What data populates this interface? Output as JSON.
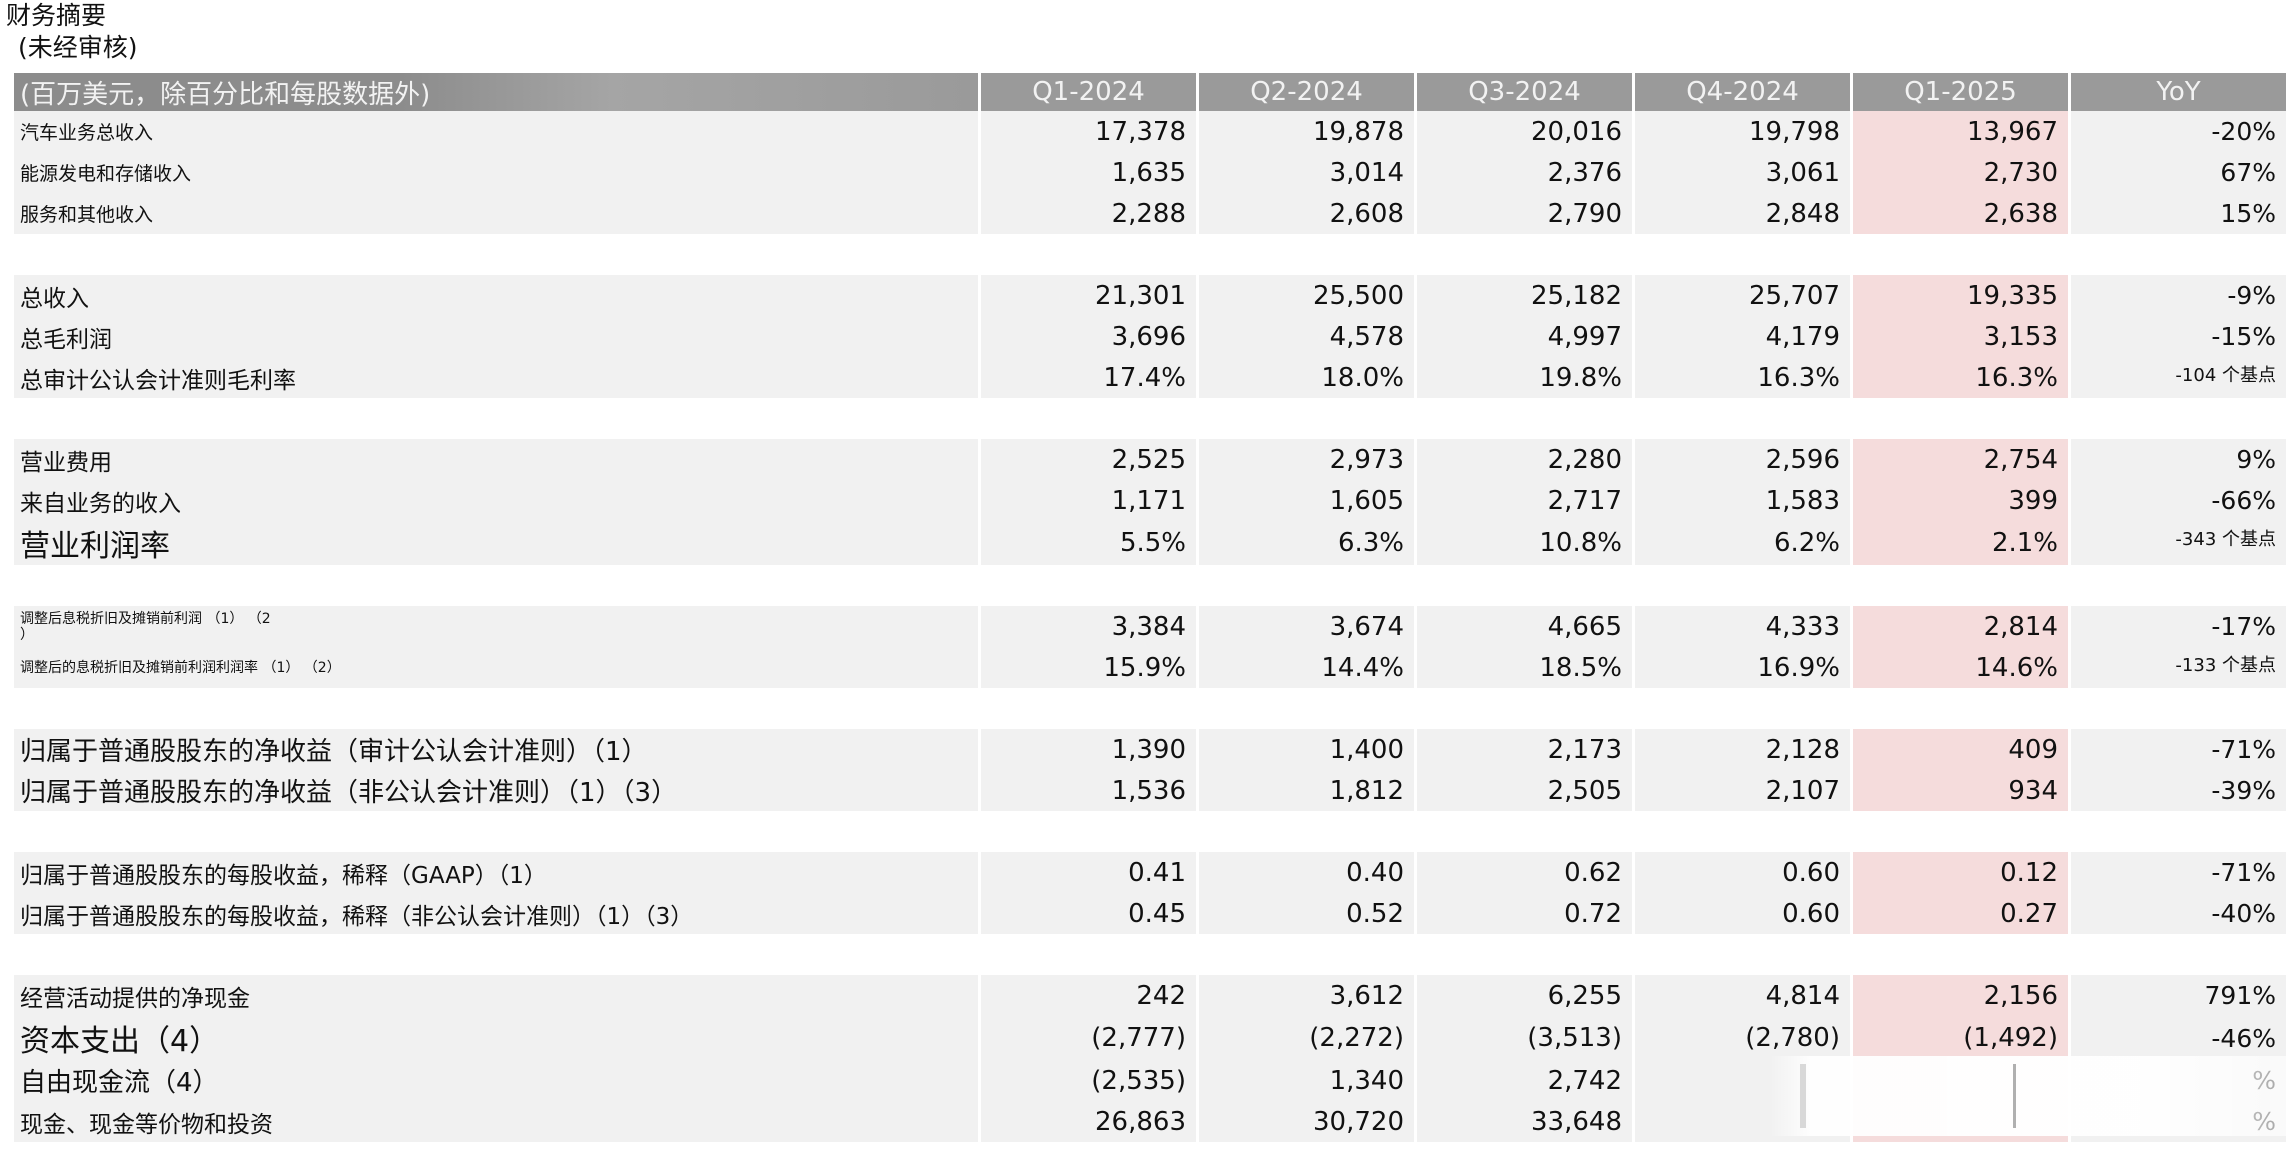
{
  "page": {
    "title": "财务摘要",
    "subtitle": "(未经审核)"
  },
  "table": {
    "header": [
      "(百万美元，除百分比和每股数据外)",
      "Q1-2024",
      "Q2-2024",
      "Q3-2024",
      "Q4-2024",
      "Q1-2025",
      "YoY"
    ],
    "highlight_color": "#f5dcdc",
    "rows": [
      {
        "label": "汽车业务总收入",
        "values": [
          "17,378",
          "19,878",
          "20,016",
          "19,798",
          "13,967"
        ],
        "yoy": "-20%"
      },
      {
        "label": "能源发电和存储收入",
        "values": [
          "1,635",
          "3,014",
          "2,376",
          "3,061",
          "2,730"
        ],
        "yoy": "67%"
      },
      {
        "label": "服务和其他收入",
        "values": [
          "2,288",
          "2,608",
          "2,790",
          "2,848",
          "2,638"
        ],
        "yoy": "15%"
      },
      {
        "label": "总收入",
        "values": [
          "21,301",
          "25,500",
          "25,182",
          "25,707",
          "19,335"
        ],
        "yoy": "-9%"
      },
      {
        "label": "总毛利润",
        "values": [
          "3,696",
          "4,578",
          "4,997",
          "4,179",
          "3,153"
        ],
        "yoy": "-15%"
      },
      {
        "label": "总审计公认会计准则毛利率",
        "values": [
          "17.4%",
          "18.0%",
          "19.8%",
          "16.3%",
          "16.3%"
        ],
        "yoy": "-104 个基点"
      },
      {
        "label": "营业费用",
        "values": [
          "2,525",
          "2,973",
          "2,280",
          "2,596",
          "2,754"
        ],
        "yoy": "9%"
      },
      {
        "label": "来自业务的收入",
        "values": [
          "1,171",
          "1,605",
          "2,717",
          "1,583",
          "399"
        ],
        "yoy": "-66%"
      },
      {
        "label": "营业利润率",
        "values": [
          "5.5%",
          "6.3%",
          "10.8%",
          "6.2%",
          "2.1%"
        ],
        "yoy": "-343 个基点"
      },
      {
        "label": "调整后息税折旧及摊销前利润 （1） （2\n）",
        "values": [
          "3,384",
          "3,674",
          "4,665",
          "4,333",
          "2,814"
        ],
        "yoy": "-17%"
      },
      {
        "label": "调整后的息税折旧及摊销前利润利润率 （1） （2）",
        "values": [
          "15.9%",
          "14.4%",
          "18.5%",
          "16.9%",
          "14.6%"
        ],
        "yoy": "-133 个基点"
      },
      {
        "label": "归属于普通股股东的净收益（审计公认会计准则）（1）",
        "values": [
          "1,390",
          "1,400",
          "2,173",
          "2,128",
          "409"
        ],
        "yoy": "-71%"
      },
      {
        "label": "归属于普通股股东的净收益（非公认会计准则）（1）（3）",
        "values": [
          "1,536",
          "1,812",
          "2,505",
          "2,107",
          "934"
        ],
        "yoy": "-39%"
      },
      {
        "label": "归属于普通股股东的每股收益，稀释（GAAP）（1）",
        "values": [
          "0.41",
          "0.40",
          "0.62",
          "0.60",
          "0.12"
        ],
        "yoy": "-71%"
      },
      {
        "label": "归属于普通股股东的每股收益，稀释（非公认会计准则）（1）（3）",
        "values": [
          "0.45",
          "0.52",
          "0.72",
          "0.60",
          "0.27"
        ],
        "yoy": "-40%"
      },
      {
        "label": "经营活动提供的净现金",
        "values": [
          "242",
          "3,612",
          "6,255",
          "4,814",
          "2,156"
        ],
        "yoy": "791%"
      },
      {
        "label": "资本支出（4）",
        "values": [
          "(2,777)",
          "(2,272)",
          "(3,513)",
          "(2,780)",
          "(1,492)"
        ],
        "yoy": "-46%"
      },
      {
        "label": "自由现金流（4）",
        "values": [
          "(2,535)",
          "1,340",
          "2,742",
          "",
          ""
        ],
        "yoy": "%"
      },
      {
        "label": "现金、现金等价物和投资",
        "values": [
          "26,863",
          "30,720",
          "33,648",
          "",
          ""
        ],
        "yoy": "%"
      }
    ]
  }
}
